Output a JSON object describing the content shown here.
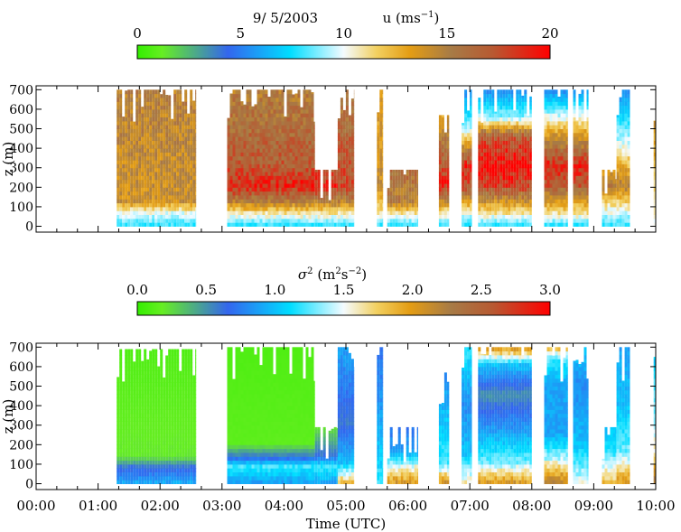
{
  "chart_data": {
    "type": "heatmap",
    "date_label": "9/ 5/2003",
    "x_axis": {
      "label": "Time (UTC)",
      "range_hours": [
        0,
        10
      ],
      "ticks": [
        "00:00",
        "01:00",
        "02:00",
        "03:00",
        "04:00",
        "05:00",
        "06:00",
        "07:00",
        "08:00",
        "09:00",
        "10:00"
      ]
    },
    "panels": [
      {
        "name": "u",
        "colorbar_title": "u (ms",
        "colorbar_title_exp": "−1",
        "colorbar_title_close": ")",
        "colorbar_ticks": [
          "0",
          "5",
          "10",
          "15",
          "20"
        ],
        "colorbar_range": [
          0,
          20
        ],
        "y_label": "z (m)",
        "y_ticks": [
          "0",
          "100",
          "200",
          "300",
          "400",
          "500",
          "600",
          "700"
        ],
        "y_range": [
          -30,
          720
        ],
        "segments": [
          {
            "start": "01:18",
            "end": "02:35",
            "top": 700,
            "profile": [
              [
                0,
                8
              ],
              [
                60,
                10
              ],
              [
                120,
                14
              ],
              [
                700,
                15
              ]
            ]
          },
          {
            "start": "03:05",
            "end": "04:30",
            "top": 700,
            "profile": [
              [
                0,
                8
              ],
              [
                60,
                11
              ],
              [
                120,
                15
              ],
              [
                200,
                19
              ],
              [
                300,
                17
              ],
              [
                700,
                15
              ]
            ]
          },
          {
            "start": "04:30",
            "end": "04:52",
            "top": 290,
            "profile": [
              [
                0,
                8
              ],
              [
                60,
                11
              ],
              [
                120,
                15
              ],
              [
                200,
                19
              ],
              [
                290,
                17
              ]
            ]
          },
          {
            "start": "04:52",
            "end": "05:08",
            "top": 700,
            "profile": [
              [
                0,
                8
              ],
              [
                60,
                11
              ],
              [
                120,
                15
              ],
              [
                200,
                18
              ],
              [
                700,
                15
              ]
            ]
          },
          {
            "start": "05:30",
            "end": "05:36",
            "top": 700,
            "profile": [
              [
                0,
                8
              ],
              [
                60,
                11
              ],
              [
                200,
                14
              ],
              [
                700,
                13
              ]
            ]
          },
          {
            "start": "05:40",
            "end": "06:10",
            "top": 290,
            "profile": [
              [
                0,
                8
              ],
              [
                60,
                11
              ],
              [
                120,
                15
              ],
              [
                290,
                16
              ]
            ]
          },
          {
            "start": "06:30",
            "end": "06:40",
            "top": 570,
            "profile": [
              [
                0,
                8
              ],
              [
                80,
                12
              ],
              [
                200,
                19
              ],
              [
                570,
                13
              ]
            ]
          },
          {
            "start": "06:52",
            "end": "07:02",
            "top": 700,
            "profile": [
              [
                0,
                8
              ],
              [
                60,
                10
              ],
              [
                180,
                17
              ],
              [
                300,
                19
              ],
              [
                500,
                9
              ],
              [
                700,
                5
              ]
            ]
          },
          {
            "start": "07:08",
            "end": "08:00",
            "top": 700,
            "profile": [
              [
                0,
                8
              ],
              [
                60,
                11
              ],
              [
                200,
                18
              ],
              [
                300,
                20
              ],
              [
                450,
                17
              ],
              [
                550,
                9
              ],
              [
                700,
                5
              ]
            ]
          },
          {
            "start": "08:12",
            "end": "08:35",
            "top": 700,
            "profile": [
              [
                0,
                8
              ],
              [
                60,
                11
              ],
              [
                200,
                17
              ],
              [
                300,
                19
              ],
              [
                450,
                14
              ],
              [
                600,
                8
              ],
              [
                700,
                5
              ]
            ]
          },
          {
            "start": "08:40",
            "end": "08:55",
            "top": 700,
            "profile": [
              [
                0,
                8
              ],
              [
                60,
                11
              ],
              [
                200,
                17
              ],
              [
                300,
                19
              ],
              [
                500,
                12
              ],
              [
                700,
                5
              ]
            ]
          },
          {
            "start": "09:08",
            "end": "09:22",
            "top": 290,
            "profile": [
              [
                0,
                8
              ],
              [
                100,
                11
              ],
              [
                200,
                15
              ],
              [
                290,
                13
              ]
            ]
          },
          {
            "start": "09:22",
            "end": "09:35",
            "top": 700,
            "profile": [
              [
                0,
                8
              ],
              [
                100,
                11
              ],
              [
                200,
                15
              ],
              [
                400,
                10
              ],
              [
                700,
                5
              ]
            ]
          },
          {
            "start": "09:58",
            "end": "10:00",
            "top": 700,
            "profile": [
              [
                0,
                10
              ],
              [
                700,
                15
              ]
            ]
          }
        ]
      },
      {
        "name": "sigma2",
        "colorbar_title": "σ",
        "colorbar_title_exp": "2",
        "colorbar_title_rest": " (m",
        "colorbar_title_exp2": "2",
        "colorbar_title_rest2": "s",
        "colorbar_title_exp3": "−2",
        "colorbar_title_close": ")",
        "colorbar_ticks": [
          "0.0",
          "0.5",
          "1.0",
          "1.5",
          "2.0",
          "2.5",
          "3.0"
        ],
        "colorbar_range": [
          0,
          3
        ],
        "y_label": "z (m)",
        "y_ticks": [
          "0",
          "100",
          "200",
          "300",
          "400",
          "500",
          "600",
          "700"
        ],
        "y_range": [
          -30,
          720
        ],
        "segments": [
          {
            "start": "01:18",
            "end": "02:35",
            "top": 690,
            "profile": [
              [
                0,
                0.9
              ],
              [
                80,
                0.6
              ],
              [
                130,
                0.2
              ],
              [
                700,
                0.1
              ]
            ]
          },
          {
            "start": "03:05",
            "end": "04:30",
            "top": 700,
            "profile": [
              [
                0,
                0.9
              ],
              [
                80,
                1.2
              ],
              [
                130,
                0.6
              ],
              [
                200,
                0.15
              ],
              [
                700,
                0.1
              ]
            ]
          },
          {
            "start": "04:30",
            "end": "04:52",
            "top": 290,
            "profile": [
              [
                0,
                0.9
              ],
              [
                80,
                1.2
              ],
              [
                140,
                0.6
              ],
              [
                290,
                0.2
              ]
            ]
          },
          {
            "start": "04:52",
            "end": "05:08",
            "top": 700,
            "profile": [
              [
                0,
                1.8
              ],
              [
                100,
                1.0
              ],
              [
                300,
                0.6
              ],
              [
                700,
                0.9
              ]
            ]
          },
          {
            "start": "05:30",
            "end": "05:36",
            "top": 700,
            "profile": [
              [
                0,
                1.2
              ],
              [
                300,
                0.9
              ],
              [
                700,
                0.7
              ]
            ]
          },
          {
            "start": "05:40",
            "end": "06:10",
            "top": 290,
            "profile": [
              [
                0,
                2.0
              ],
              [
                80,
                1.5
              ],
              [
                150,
                0.9
              ],
              [
                290,
                0.7
              ]
            ]
          },
          {
            "start": "06:30",
            "end": "06:40",
            "top": 570,
            "profile": [
              [
                0,
                2.0
              ],
              [
                100,
                1.2
              ],
              [
                570,
                0.8
              ]
            ]
          },
          {
            "start": "06:52",
            "end": "07:02",
            "top": 700,
            "profile": [
              [
                0,
                1.6
              ],
              [
                150,
                1.0
              ],
              [
                400,
                0.8
              ],
              [
                700,
                1.2
              ]
            ]
          },
          {
            "start": "07:08",
            "end": "08:00",
            "top": 700,
            "profile": [
              [
                0,
                2.0
              ],
              [
                100,
                1.3
              ],
              [
                250,
                0.9
              ],
              [
                450,
                0.5
              ],
              [
                600,
                1.0
              ],
              [
                700,
                2.2
              ]
            ]
          },
          {
            "start": "08:12",
            "end": "08:35",
            "top": 700,
            "profile": [
              [
                0,
                2.2
              ],
              [
                120,
                1.4
              ],
              [
                250,
                0.9
              ],
              [
                500,
                0.9
              ],
              [
                650,
                1.3
              ],
              [
                700,
                2.2
              ]
            ]
          },
          {
            "start": "08:40",
            "end": "08:55",
            "top": 700,
            "profile": [
              [
                0,
                1.5
              ],
              [
                200,
                1.0
              ],
              [
                500,
                0.8
              ],
              [
                700,
                1.1
              ]
            ]
          },
          {
            "start": "09:08",
            "end": "09:22",
            "top": 290,
            "profile": [
              [
                0,
                1.8
              ],
              [
                150,
                1.2
              ],
              [
                290,
                1.0
              ]
            ]
          },
          {
            "start": "09:22",
            "end": "09:35",
            "top": 700,
            "profile": [
              [
                0,
                2.0
              ],
              [
                150,
                1.3
              ],
              [
                400,
                1.0
              ],
              [
                700,
                0.9
              ]
            ]
          },
          {
            "start": "09:58",
            "end": "10:00",
            "top": 700,
            "profile": [
              [
                0,
                2.2
              ],
              [
                200,
                1.5
              ],
              [
                700,
                1.0
              ]
            ]
          }
        ]
      }
    ]
  }
}
